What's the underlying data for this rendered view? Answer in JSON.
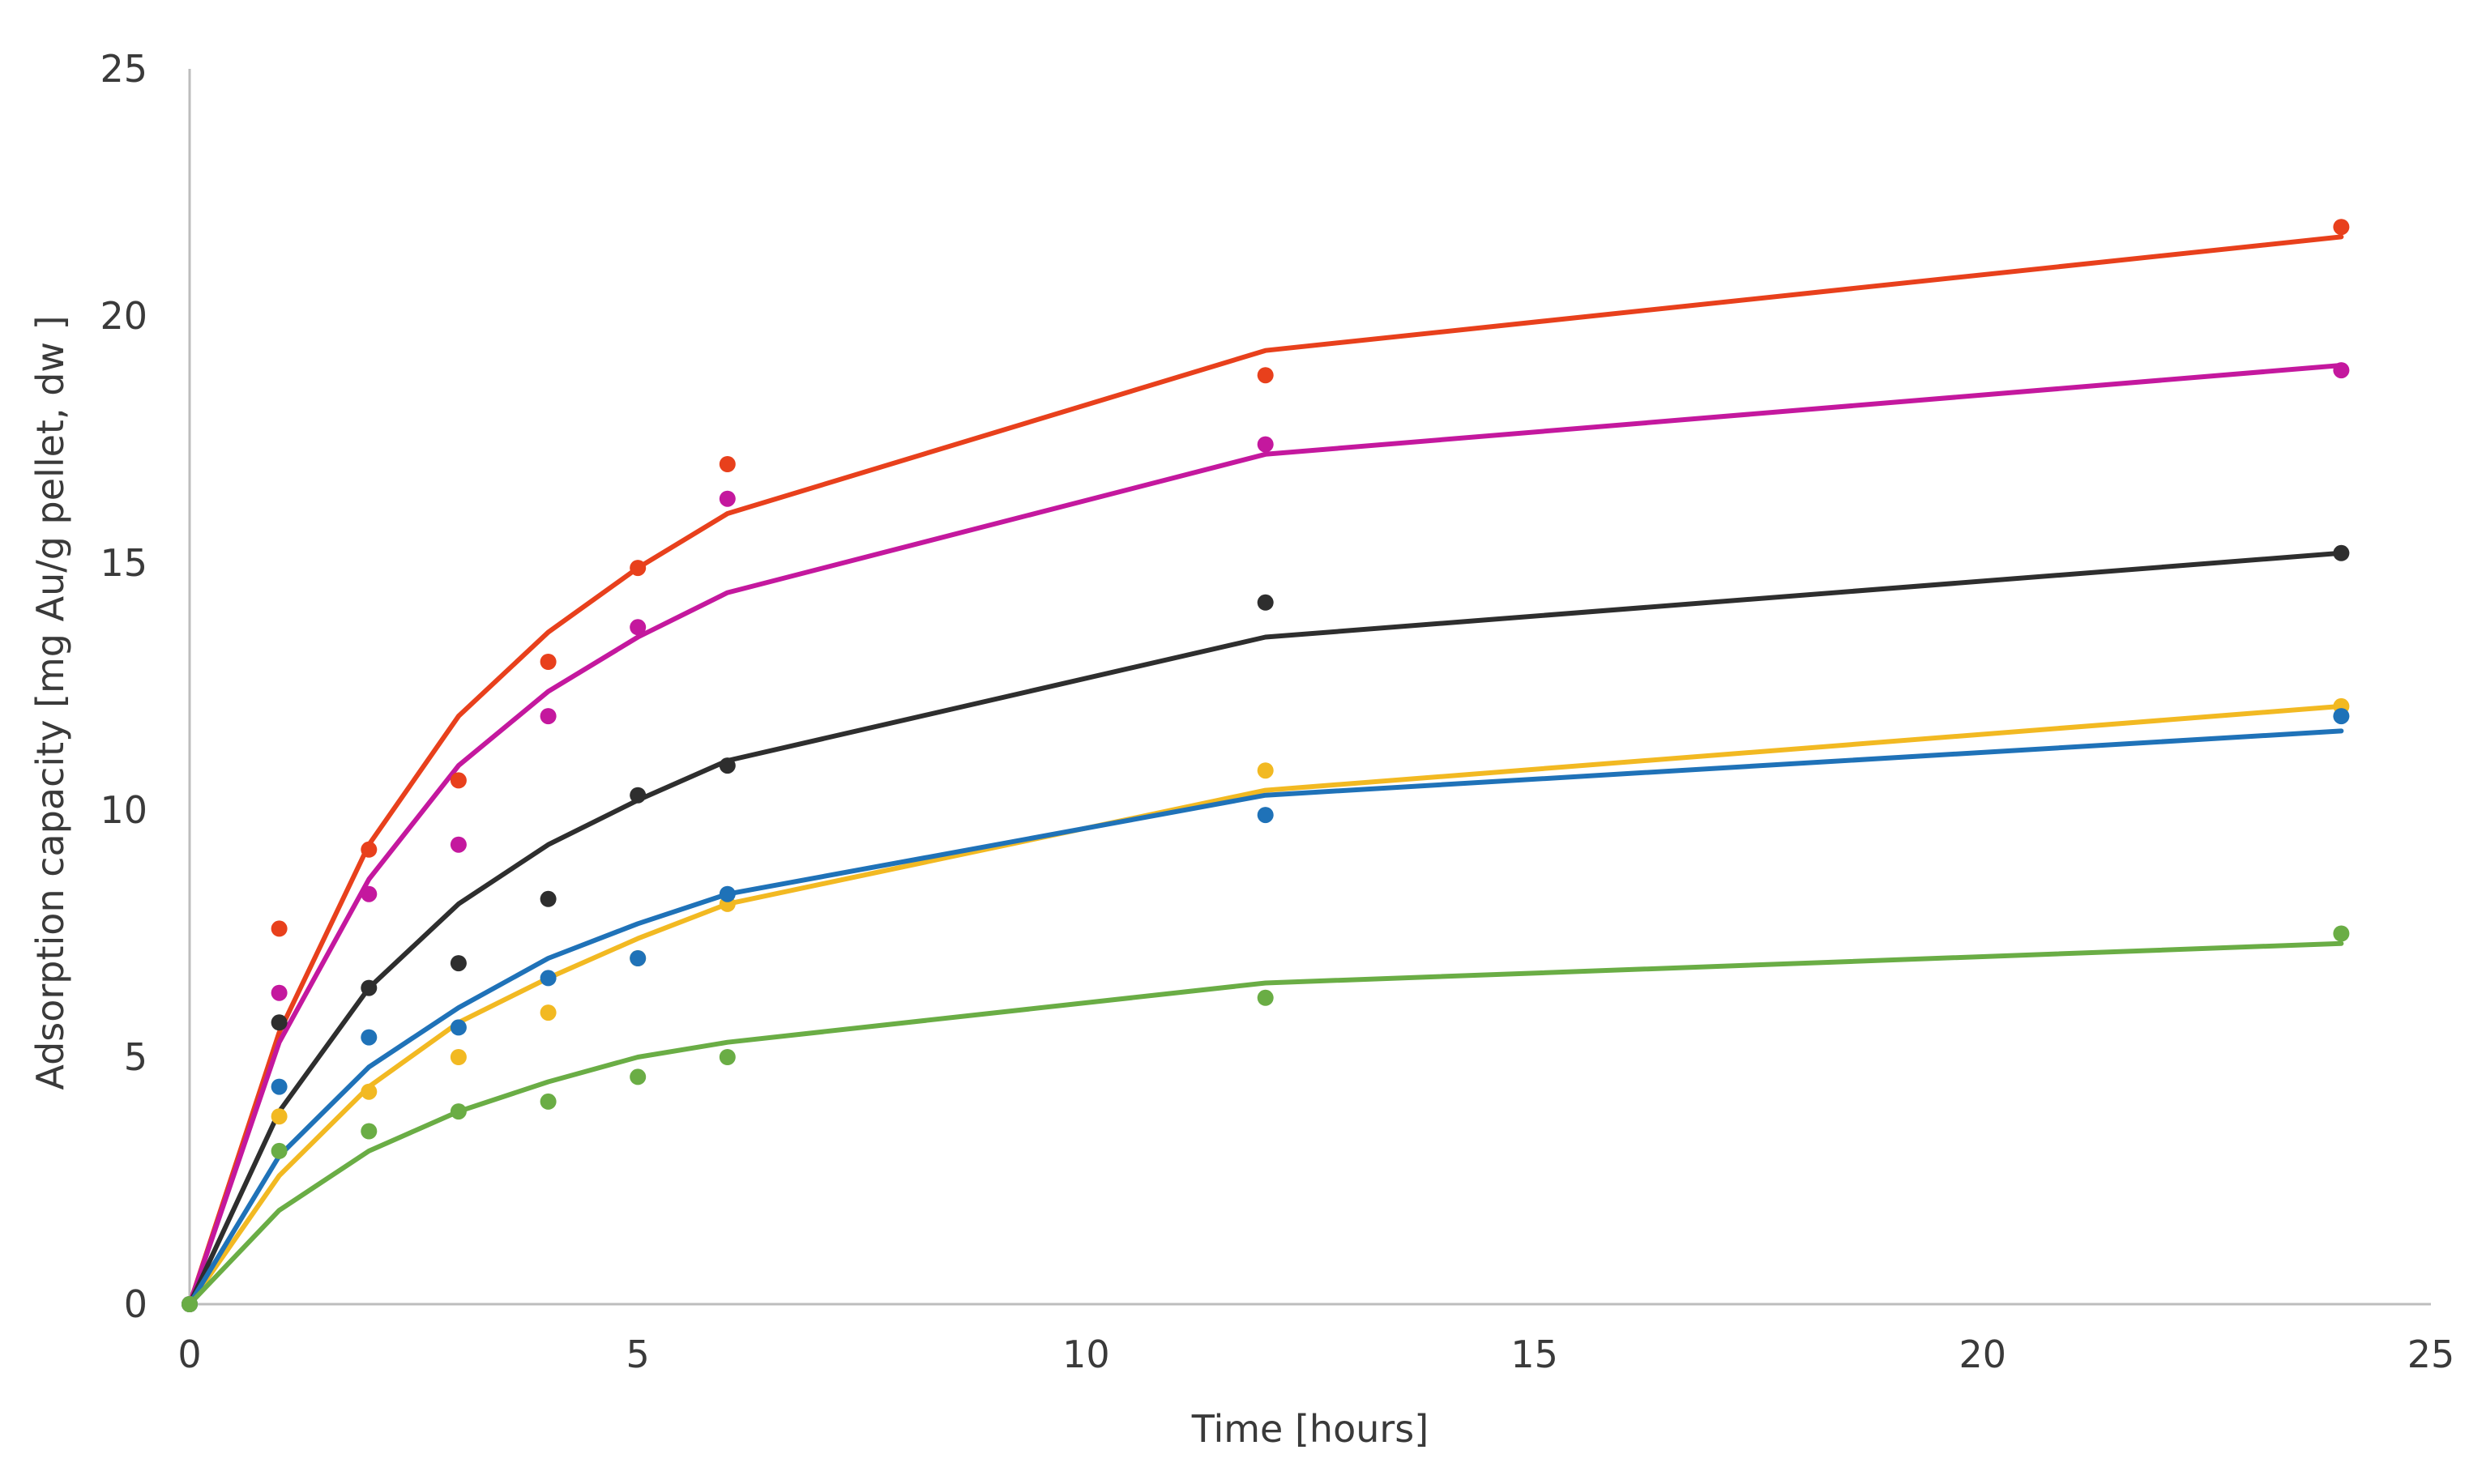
{
  "chart_data": {
    "type": "scatter",
    "title": "",
    "xlabel": "Time [hours]",
    "ylabel": "Adsorption capacity [mg Au/g pellet, dw ]",
    "xlim": [
      0,
      25
    ],
    "ylim": [
      0,
      25
    ],
    "x_ticks": [
      "0",
      "5",
      "10",
      "15",
      "20",
      "25"
    ],
    "y_ticks": [
      "0",
      "5",
      "10",
      "15",
      "20",
      "25"
    ],
    "grid": false,
    "legend": "none",
    "series": [
      {
        "color": "#e8401c",
        "x": [
          0,
          1,
          2,
          3,
          4,
          5,
          6,
          12,
          24
        ],
        "points": [
          0,
          7.6,
          9.2,
          10.6,
          13.0,
          14.9,
          17.0,
          18.8,
          21.8
        ],
        "fit": [
          0,
          5.5,
          9.3,
          11.9,
          13.6,
          14.9,
          16.0,
          19.3,
          21.6
        ]
      },
      {
        "color": "#c4189e",
        "x": [
          0,
          1,
          2,
          3,
          4,
          5,
          6,
          12,
          24
        ],
        "points": [
          0,
          6.3,
          8.3,
          9.3,
          11.9,
          13.7,
          16.3,
          17.4,
          18.9
        ],
        "fit": [
          0,
          5.3,
          8.6,
          10.9,
          12.4,
          13.5,
          14.4,
          17.2,
          19.0
        ]
      },
      {
        "color": "#2e2e2e",
        "x": [
          0,
          1,
          2,
          3,
          4,
          5,
          6,
          12,
          24
        ],
        "points": [
          0,
          5.7,
          6.4,
          6.9,
          8.2,
          10.3,
          10.9,
          14.2,
          15.2
        ],
        "fit": [
          0,
          3.9,
          6.4,
          8.1,
          9.3,
          10.2,
          11.0,
          13.5,
          15.2
        ]
      },
      {
        "color": "#f2b922",
        "x": [
          0,
          1,
          2,
          3,
          4,
          5,
          6,
          12,
          24
        ],
        "points": [
          0,
          3.8,
          4.3,
          5.0,
          5.9,
          7.0,
          8.1,
          10.8,
          12.1
        ],
        "fit": [
          0,
          2.6,
          4.4,
          5.7,
          6.6,
          7.4,
          8.1,
          10.4,
          12.1
        ]
      },
      {
        "color": "#1f72b8",
        "x": [
          0,
          1,
          2,
          3,
          4,
          5,
          6,
          12,
          24
        ],
        "points": [
          0,
          4.4,
          5.4,
          5.6,
          6.6,
          7.0,
          8.3,
          9.9,
          11.9
        ],
        "fit": [
          0,
          3.0,
          4.8,
          6.0,
          7.0,
          7.7,
          8.3,
          10.3,
          11.6
        ]
      },
      {
        "color": "#6aad45",
        "x": [
          0,
          1,
          2,
          3,
          4,
          5,
          6,
          12,
          24
        ],
        "points": [
          0,
          3.1,
          3.5,
          3.9,
          4.1,
          4.6,
          5.0,
          6.2,
          7.5
        ],
        "fit": [
          0,
          1.9,
          3.1,
          3.9,
          4.5,
          5.0,
          5.3,
          6.5,
          7.3
        ]
      }
    ]
  }
}
